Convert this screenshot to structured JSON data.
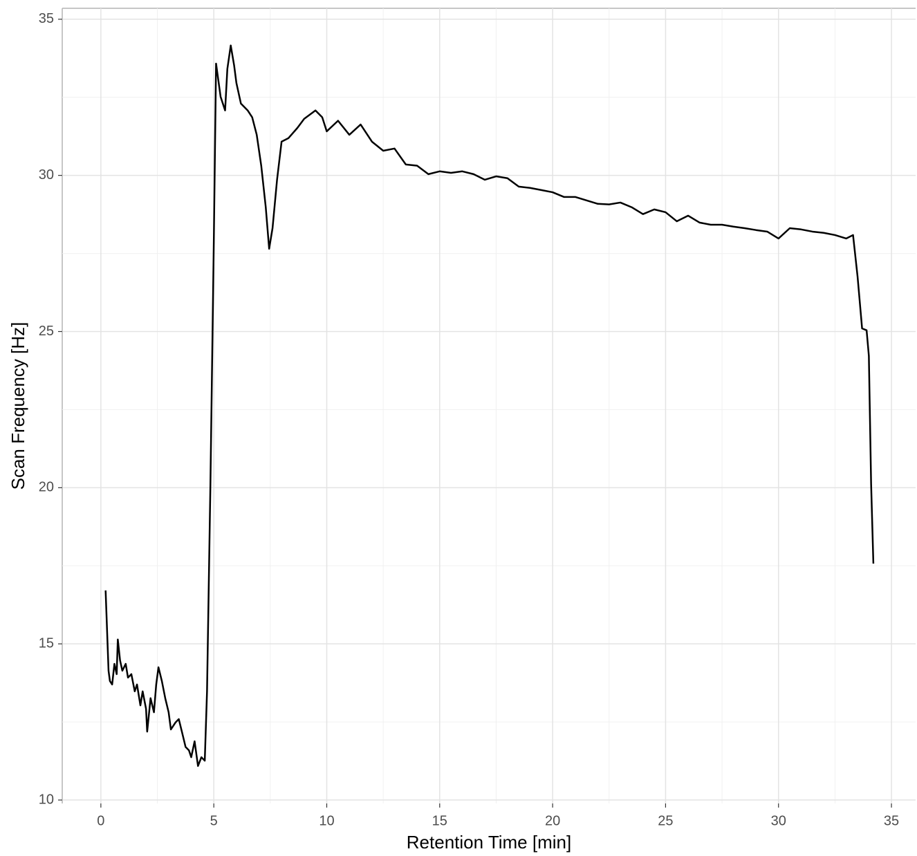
{
  "chart_data": {
    "type": "line",
    "x_label": "Retention Time [min]",
    "y_label": "Scan Frequency [Hz]",
    "xlim": [
      -1.71,
      36.07
    ],
    "ylim": [
      9.89,
      35.35
    ],
    "xticks": [
      0,
      5,
      10,
      15,
      20,
      25,
      30,
      35
    ],
    "yticks": [
      10,
      15,
      20,
      25,
      30,
      35
    ],
    "grid": true,
    "series": [
      {
        "name": "Scan Frequency",
        "color": "#000000",
        "x": [
          0.21,
          0.34,
          0.4,
          0.5,
          0.6,
          0.7,
          0.75,
          0.85,
          0.95,
          1.1,
          1.2,
          1.35,
          1.5,
          1.6,
          1.75,
          1.85,
          2.0,
          2.05,
          2.2,
          2.35,
          2.45,
          2.55,
          2.7,
          2.85,
          3.0,
          3.1,
          3.3,
          3.45,
          3.6,
          3.75,
          3.9,
          4.0,
          4.15,
          4.3,
          4.45,
          4.6,
          4.7,
          4.85,
          5.0,
          5.1,
          5.3,
          5.5,
          5.6,
          5.75,
          5.9,
          6.0,
          6.2,
          6.5,
          6.7,
          6.9,
          7.1,
          7.3,
          7.45,
          7.6,
          7.8,
          8.0,
          8.3,
          8.7,
          9.0,
          9.5,
          9.8,
          10.0,
          10.5,
          11.0,
          11.5,
          12.0,
          12.5,
          13.0,
          13.5,
          14.0,
          14.5,
          15.0,
          15.5,
          16.0,
          16.5,
          17.0,
          17.5,
          18.0,
          18.5,
          19.0,
          19.5,
          20.0,
          20.5,
          21.0,
          21.5,
          22.0,
          22.5,
          23.0,
          23.5,
          24.0,
          24.5,
          25.0,
          25.5,
          26.0,
          26.5,
          27.0,
          27.5,
          28.0,
          28.5,
          29.0,
          29.5,
          30.0,
          30.5,
          31.0,
          31.5,
          32.0,
          32.5,
          33.0,
          33.3,
          33.5,
          33.7,
          33.9,
          34.0,
          34.1,
          34.2
        ],
        "values": [
          16.71,
          14.14,
          13.81,
          13.7,
          14.36,
          14.03,
          15.14,
          14.47,
          14.14,
          14.36,
          13.92,
          14.03,
          13.48,
          13.7,
          13.03,
          13.48,
          12.92,
          12.19,
          13.26,
          12.81,
          13.7,
          14.25,
          13.81,
          13.26,
          12.81,
          12.26,
          12.48,
          12.59,
          12.15,
          11.7,
          11.59,
          11.37,
          11.88,
          11.09,
          11.37,
          11.26,
          13.48,
          20.12,
          27.87,
          33.58,
          32.52,
          32.08,
          33.41,
          34.16,
          33.52,
          32.96,
          32.3,
          32.08,
          31.86,
          31.3,
          30.31,
          28.98,
          27.65,
          28.31,
          29.86,
          31.08,
          31.19,
          31.52,
          31.81,
          32.08,
          31.86,
          31.41,
          31.75,
          31.3,
          31.63,
          31.08,
          30.79,
          30.86,
          30.35,
          30.31,
          30.04,
          30.13,
          30.08,
          30.13,
          30.04,
          29.86,
          29.97,
          29.91,
          29.64,
          29.6,
          29.53,
          29.46,
          29.31,
          29.31,
          29.2,
          29.09,
          29.07,
          29.13,
          28.98,
          28.76,
          28.91,
          28.82,
          28.53,
          28.71,
          28.49,
          28.42,
          28.42,
          28.36,
          28.31,
          28.25,
          28.2,
          27.98,
          28.31,
          28.27,
          28.2,
          28.16,
          28.09,
          27.98,
          28.09,
          26.76,
          25.1,
          25.04,
          24.22,
          20.12,
          17.57
        ]
      }
    ]
  }
}
